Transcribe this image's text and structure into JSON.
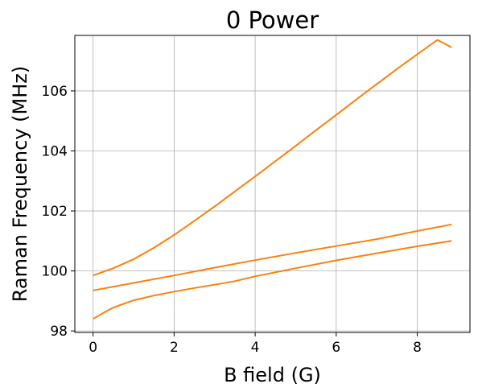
{
  "chart_data": {
    "type": "line",
    "title": "0 Power",
    "xlabel": "B field (G)",
    "ylabel": "Raman Frequency (MHz)",
    "xlim": [
      -0.45,
      9.3
    ],
    "ylim": [
      97.95,
      107.85
    ],
    "xticks": [
      0,
      2,
      4,
      6,
      8
    ],
    "yticks": [
      98,
      100,
      102,
      104,
      106
    ],
    "grid": true,
    "line_color": "#ff7f0e",
    "series": [
      {
        "x": [
          0,
          0.5,
          1,
          1.5,
          2,
          2.5,
          3,
          3.5,
          4,
          4.5,
          5,
          5.5,
          6,
          6.5,
          7,
          7.5,
          8,
          8.5,
          8.85
        ],
        "values": [
          99.85,
          100.09,
          100.39,
          100.77,
          101.2,
          101.67,
          102.15,
          102.65,
          103.15,
          103.66,
          104.17,
          104.69,
          105.2,
          105.72,
          106.23,
          106.73,
          107.22,
          107.7,
          107.45
        ]
      },
      {
        "x": [
          0,
          1,
          2,
          3,
          4,
          5,
          6,
          7,
          8,
          8.85
        ],
        "values": [
          99.35,
          99.6,
          99.85,
          100.11,
          100.36,
          100.6,
          100.83,
          101.06,
          101.33,
          101.55
        ]
      },
      {
        "x": [
          0,
          0.25,
          0.5,
          1,
          1.5,
          2,
          2.5,
          3,
          3.5,
          4,
          5,
          6,
          7,
          8,
          8.85
        ],
        "values": [
          98.4,
          98.6,
          98.78,
          99.02,
          99.18,
          99.31,
          99.43,
          99.54,
          99.66,
          99.82,
          100.09,
          100.35,
          100.59,
          100.82,
          101.0
        ]
      }
    ]
  }
}
